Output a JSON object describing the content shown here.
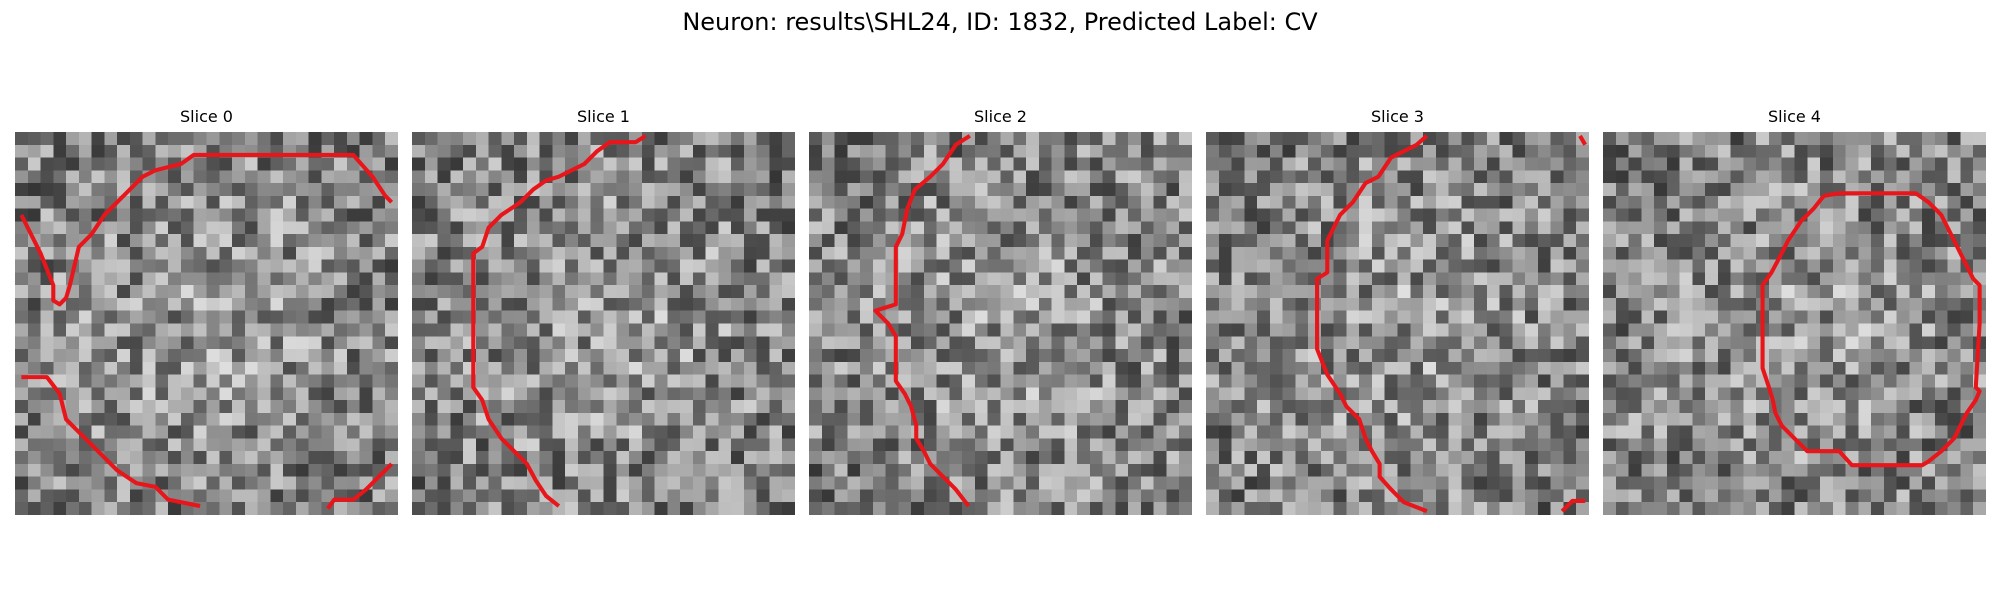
{
  "figure": {
    "title": "Neuron: results\\SHL24, ID: 1832, Predicted Label: CV"
  },
  "panels": [
    {
      "title": "Slice 0",
      "seed": 11,
      "contour_color": "#e8161b"
    },
    {
      "title": "Slice 1",
      "seed": 23,
      "contour_color": "#e8161b"
    },
    {
      "title": "Slice 2",
      "seed": 37,
      "contour_color": "#e8161b"
    },
    {
      "title": "Slice 3",
      "seed": 53,
      "contour_color": "#e8161b"
    },
    {
      "title": "Slice 4",
      "seed": 71,
      "contour_color": "#e8161b"
    }
  ],
  "grid_size": 30
}
